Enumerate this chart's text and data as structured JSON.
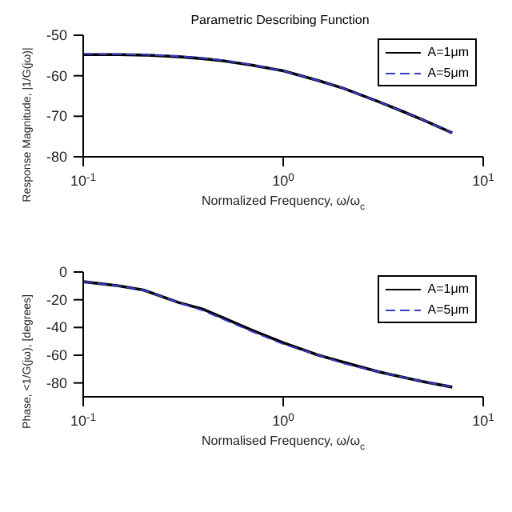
{
  "chart_data": [
    {
      "type": "line",
      "title": "Parametric Describing Function",
      "xlabel": "Normalized Frequency, ω/ω$_{c}$",
      "ylabel": "Response Magnitude, |1/G(jω)|",
      "log": "x",
      "xlim": [
        0.1,
        10
      ],
      "xticks": [
        {
          "value": 0.1,
          "label": "10$^{-1}$"
        },
        {
          "value": 1,
          "label": "10$^{0}$"
        },
        {
          "value": 10,
          "label": "10$^{1}$"
        }
      ],
      "ylim": [
        -80,
        -50
      ],
      "yticks": [
        -50,
        -60,
        -70,
        -80
      ],
      "x": [
        0.1,
        0.15,
        0.2,
        0.3,
        0.4,
        0.5,
        0.7,
        1,
        1.5,
        2,
        3,
        4,
        5,
        7
      ],
      "series": [
        {
          "name": "A=1μm",
          "color": "#000000",
          "line_style": "solid",
          "values": [
            -54.8,
            -54.8,
            -54.9,
            -55.3,
            -55.8,
            -56.3,
            -57.4,
            -58.8,
            -61.2,
            -63.1,
            -66.4,
            -68.9,
            -70.9,
            -74.1
          ]
        },
        {
          "name": "A=5μm",
          "color": "#3a3acf",
          "line_style": "dashed",
          "values": [
            -54.6,
            -54.7,
            -54.8,
            -55.2,
            -55.7,
            -56.2,
            -57.3,
            -58.8,
            -61.2,
            -63.1,
            -66.4,
            -68.9,
            -70.9,
            -74.1
          ]
        }
      ],
      "legend": "top right",
      "marker": "none",
      "grid": false
    },
    {
      "type": "line",
      "xlabel": "Normalised Frequency, ω/ω$_{c}$",
      "ylabel": "Phase, <1/G(jω), [degrees]",
      "log": "x",
      "xlim": [
        0.1,
        10
      ],
      "xticks": [
        {
          "value": 0.1,
          "label": "10$^{-1}$"
        },
        {
          "value": 1,
          "label": "10$^{0}$"
        },
        {
          "value": 10,
          "label": "10$^{1}$"
        }
      ],
      "ylim": [
        -90,
        0
      ],
      "yticks": [
        0,
        -20,
        -40,
        -60,
        -80
      ],
      "x": [
        0.1,
        0.15,
        0.2,
        0.3,
        0.4,
        0.5,
        0.7,
        1,
        1.5,
        2,
        3,
        4,
        5,
        7
      ],
      "series": [
        {
          "name": "A=1μm",
          "color": "#000000",
          "line_style": "solid",
          "values": [
            -7,
            -10,
            -13,
            -22,
            -27,
            -33,
            -42,
            -51,
            -60,
            -65,
            -72,
            -76,
            -79,
            -83
          ]
        },
        {
          "name": "A=5μm",
          "color": "#3a3acf",
          "line_style": "dashed",
          "values": [
            -7,
            -10,
            -13,
            -22,
            -28,
            -34,
            -43,
            -52,
            -60,
            -66,
            -72,
            -76,
            -79,
            -83
          ]
        }
      ],
      "legend": "top right",
      "marker": "none",
      "grid": false
    }
  ]
}
